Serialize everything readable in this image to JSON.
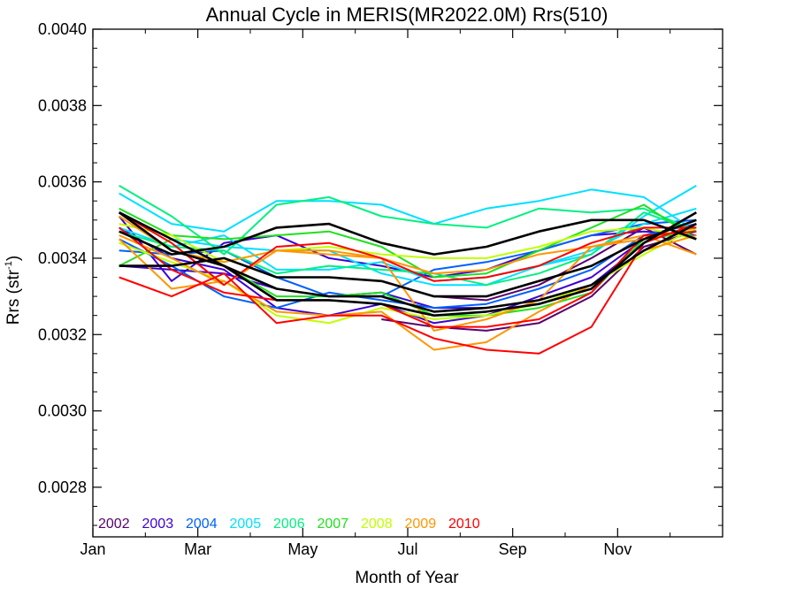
{
  "chart_data": {
    "type": "line",
    "title": "Annual Cycle in MERIS(MR2022.0M) Rrs(510)",
    "xlabel": "Month of Year",
    "ylabel_main": "Rrs (str",
    "ylabel_sup": "-1",
    "ylabel_close": ")",
    "xlim": [
      0,
      12
    ],
    "ylim": [
      0.00267,
      0.004
    ],
    "x_ticks": [
      {
        "value": 0,
        "label": "Jan"
      },
      {
        "value": 2,
        "label": "Mar"
      },
      {
        "value": 4,
        "label": "May"
      },
      {
        "value": 6,
        "label": "Jul"
      },
      {
        "value": 8,
        "label": "Sep"
      },
      {
        "value": 10,
        "label": "Nov"
      }
    ],
    "x_minor_ticks": [
      1,
      3,
      5,
      7,
      9,
      11
    ],
    "y_ticks": [
      {
        "value": 0.0028,
        "label": "0.0028"
      },
      {
        "value": 0.003,
        "label": "0.0030"
      },
      {
        "value": 0.0032,
        "label": "0.0032"
      },
      {
        "value": 0.0034,
        "label": "0.0034"
      },
      {
        "value": 0.0036,
        "label": "0.0036"
      },
      {
        "value": 0.0038,
        "label": "0.0038"
      },
      {
        "value": 0.004,
        "label": "0.0040"
      }
    ],
    "y_minor_step": 5e-05,
    "legend": [
      {
        "label": "2002",
        "color": "#5a006e"
      },
      {
        "label": "2003",
        "color": "#3c00d2"
      },
      {
        "label": "2004",
        "color": "#0060ff"
      },
      {
        "label": "2005",
        "color": "#00e0ff"
      },
      {
        "label": "2006",
        "color": "#00f080"
      },
      {
        "label": "2007",
        "color": "#20e020"
      },
      {
        "label": "2008",
        "color": "#c0ff00"
      },
      {
        "label": "2009",
        "color": "#ff9600"
      },
      {
        "label": "2010",
        "color": "#ff0000"
      }
    ],
    "legend_position": "bottom-left",
    "x": [
      0.5,
      1.5,
      2.5,
      3.5,
      4.5,
      5.5,
      6.5,
      7.5,
      8.5,
      9.5,
      10.5,
      11.5
    ],
    "series": [
      {
        "color": "#5a006e",
        "values": [
          null,
          null,
          null,
          null,
          null,
          0.00324,
          0.00322,
          0.00321,
          0.00323,
          0.0033,
          0.00343,
          0.00347
        ]
      },
      {
        "color": "#5a006e",
        "values": [
          null,
          null,
          null,
          null,
          null,
          null,
          0.0033,
          0.00329,
          0.00333,
          0.0034,
          0.00348,
          0.00341
        ]
      },
      {
        "color": "#3c00d2",
        "values": [
          0.00351,
          0.00334,
          0.00344,
          0.00346,
          0.0034,
          0.00338,
          0.00335,
          0.00337,
          0.00342,
          0.00346,
          0.00347,
          0.00346
        ]
      },
      {
        "color": "#3c00d2",
        "values": [
          0.00338,
          0.00337,
          0.00336,
          0.00332,
          0.0033,
          0.00331,
          0.00327,
          0.00327,
          0.00329,
          0.00333,
          0.00344,
          0.00352
        ]
      },
      {
        "color": "#3c00d2",
        "values": [
          0.00348,
          0.0034,
          0.00337,
          0.00327,
          0.00325,
          0.00328,
          0.00323,
          0.00325,
          0.0033,
          0.00335,
          0.00345,
          0.0035
        ]
      },
      {
        "color": "#0060ff",
        "values": [
          0.00345,
          0.00338,
          0.0033,
          0.00327,
          0.00331,
          0.00329,
          0.00327,
          0.00328,
          0.00332,
          0.00337,
          0.00346,
          0.00349
        ]
      },
      {
        "color": "#0060ff",
        "values": [
          0.00342,
          0.00341,
          0.00342,
          0.00335,
          0.0033,
          0.0033,
          0.00337,
          0.00339,
          0.00342,
          0.00346,
          0.00349,
          0.0035
        ]
      },
      {
        "color": "#00e0ff",
        "values": [
          0.00357,
          0.00349,
          0.00347,
          0.00355,
          0.00355,
          0.00354,
          0.00349,
          0.00353,
          0.00355,
          0.00358,
          0.00356,
          0.00347
        ]
      },
      {
        "color": "#00e0ff",
        "values": [
          0.00348,
          0.00343,
          0.00346,
          0.00337,
          0.00337,
          0.00339,
          0.00334,
          0.00335,
          0.00338,
          0.00341,
          0.00351,
          0.00359
        ]
      },
      {
        "color": "#00e0ff",
        "values": [
          0.00352,
          0.00345,
          0.00343,
          0.00342,
          0.00342,
          0.00336,
          0.00333,
          0.00333,
          0.00338,
          0.00342,
          0.00349,
          0.00353
        ]
      },
      {
        "color": "#00f080",
        "values": [
          0.00359,
          0.00351,
          0.00341,
          0.00354,
          0.00356,
          0.00351,
          0.00349,
          0.00348,
          0.00353,
          0.00352,
          0.00353,
          0.00347
        ]
      },
      {
        "color": "#00f080",
        "values": [
          0.00347,
          0.00343,
          0.00342,
          0.00336,
          0.00338,
          0.00337,
          0.00336,
          0.00333,
          0.00336,
          0.00341,
          0.00352,
          0.00347
        ]
      },
      {
        "color": "#20e020",
        "values": [
          0.00353,
          0.00346,
          0.00345,
          0.00346,
          0.00347,
          0.00343,
          0.00335,
          0.00336,
          0.00342,
          0.00348,
          0.00354,
          0.00345
        ]
      },
      {
        "color": "#20e020",
        "values": [
          0.00338,
          0.00345,
          0.00338,
          0.0033,
          0.0033,
          0.00331,
          0.00325,
          0.00325,
          0.00327,
          0.00331,
          0.00345,
          0.00347
        ]
      },
      {
        "color": "#c0ff00",
        "values": [
          0.00344,
          0.00339,
          0.00334,
          0.00325,
          0.00323,
          0.00327,
          0.00324,
          0.00325,
          0.00328,
          0.00333,
          0.00341,
          0.00348
        ]
      },
      {
        "color": "#c0ff00",
        "values": [
          0.00349,
          0.00346,
          0.00339,
          0.00342,
          0.00343,
          0.00341,
          0.0034,
          0.0034,
          0.00343,
          0.00347,
          0.00348,
          0.00345
        ]
      },
      {
        "color": "#ff9600",
        "values": [
          0.00345,
          0.00332,
          0.00334,
          0.00326,
          0.00325,
          0.00326,
          0.00316,
          0.00318,
          0.00326,
          0.00333,
          0.00342,
          0.00346
        ]
      },
      {
        "color": "#ff9600",
        "values": [
          0.00346,
          0.0034,
          0.00333,
          0.00342,
          0.00341,
          0.0034,
          0.00321,
          0.00324,
          0.00329,
          0.00343,
          0.00346,
          0.00341
        ]
      },
      {
        "color": "#ff9600",
        "values": [
          0.00351,
          0.00342,
          0.00339,
          0.00342,
          0.00342,
          0.0034,
          0.00336,
          0.00337,
          0.00341,
          0.00343,
          0.00345,
          0.00348
        ]
      },
      {
        "color": "#ff0000",
        "values": [
          0.00335,
          0.0033,
          0.00336,
          0.00323,
          0.00325,
          0.00325,
          0.00319,
          0.00316,
          0.00315,
          0.00322,
          0.00344,
          0.00349
        ]
      },
      {
        "color": "#ff0000",
        "values": [
          0.00352,
          0.00344,
          0.00333,
          0.00343,
          0.00344,
          0.0034,
          0.00334,
          0.00335,
          0.00338,
          0.00344,
          0.00348,
          0.00348
        ]
      },
      {
        "color": "#ff0000",
        "values": [
          0.00348,
          0.00337,
          0.00331,
          0.00329,
          0.00329,
          0.00328,
          0.00322,
          0.00322,
          0.00324,
          0.00331,
          0.00346,
          0.00347
        ]
      },
      {
        "color": "#000000",
        "values": [
          0.00347,
          0.00341,
          0.00343,
          0.00348,
          0.00349,
          0.00344,
          0.00341,
          0.00343,
          0.00347,
          0.0035,
          0.0035,
          0.00345
        ]
      },
      {
        "color": "#000000",
        "values": [
          0.00338,
          0.00338,
          0.0034,
          0.00335,
          0.00335,
          0.00334,
          0.0033,
          0.0033,
          0.00334,
          0.00338,
          0.00345,
          0.0035
        ]
      },
      {
        "color": "#000000",
        "values": [
          0.00352,
          0.00342,
          0.00338,
          0.00332,
          0.0033,
          0.0033,
          0.00326,
          0.00327,
          0.00329,
          0.00333,
          0.00342,
          0.00349
        ]
      },
      {
        "color": "#000000",
        "values": [
          0.00352,
          0.00345,
          0.00338,
          0.00329,
          0.00329,
          0.00328,
          0.00325,
          0.00326,
          0.00328,
          0.00332,
          0.00344,
          0.00352
        ]
      }
    ]
  }
}
